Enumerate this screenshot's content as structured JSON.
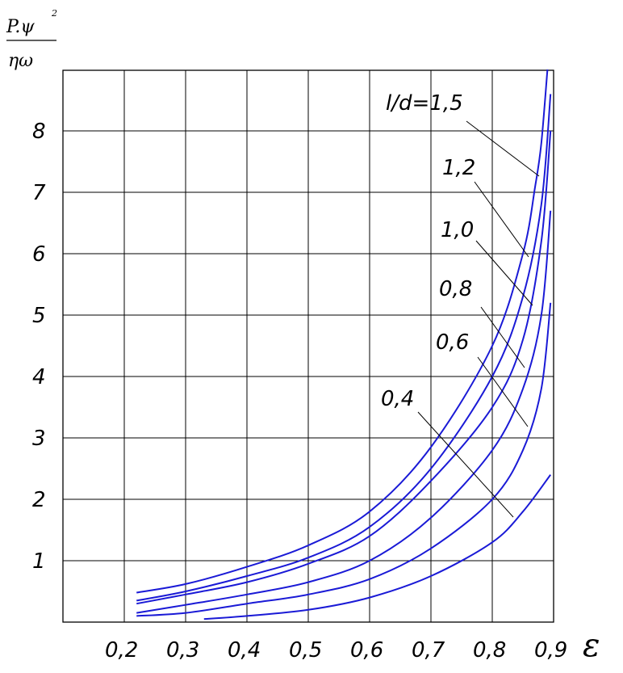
{
  "chart_data": {
    "type": "line",
    "ylabel_numerator": "P.ψ",
    "ylabel_exponent": "2",
    "ylabel_denominator": "ηω",
    "xlabel": "ε",
    "xlim": [
      0.1,
      0.9
    ],
    "ylim": [
      0,
      9
    ],
    "grid": true,
    "xticks": [
      0.2,
      0.3,
      0.4,
      0.5,
      0.6,
      0.7,
      0.8,
      0.9
    ],
    "xtick_labels": [
      "0,2",
      "0,3",
      "0,4",
      "0,5",
      "0,6",
      "0,7",
      "0,8",
      "0,9"
    ],
    "yticks": [
      1,
      2,
      3,
      4,
      5,
      6,
      7,
      8
    ],
    "ytick_labels": [
      "1",
      "2",
      "3",
      "4",
      "5",
      "6",
      "7",
      "8"
    ],
    "line_color": "#1a1ad6",
    "series": [
      {
        "name": "l/d=1,5",
        "x": [
          0.22,
          0.3,
          0.4,
          0.5,
          0.6,
          0.7,
          0.8,
          0.85,
          0.87,
          0.88,
          0.89
        ],
        "y": [
          0.48,
          0.62,
          0.9,
          1.25,
          1.8,
          2.85,
          4.5,
          6.0,
          7.1,
          7.8,
          9.0
        ]
      },
      {
        "name": "1,2",
        "x": [
          0.22,
          0.3,
          0.4,
          0.5,
          0.6,
          0.7,
          0.8,
          0.85,
          0.88,
          0.895
        ],
        "y": [
          0.35,
          0.5,
          0.75,
          1.05,
          1.55,
          2.5,
          4.0,
          5.3,
          6.8,
          8.6
        ]
      },
      {
        "name": "1,0",
        "x": [
          0.22,
          0.3,
          0.4,
          0.5,
          0.6,
          0.7,
          0.8,
          0.85,
          0.88,
          0.895
        ],
        "y": [
          0.3,
          0.45,
          0.65,
          0.95,
          1.4,
          2.3,
          3.5,
          4.6,
          6.2,
          8.0
        ]
      },
      {
        "name": "0,8",
        "x": [
          0.22,
          0.3,
          0.4,
          0.5,
          0.6,
          0.7,
          0.8,
          0.85,
          0.88,
          0.895
        ],
        "y": [
          0.15,
          0.28,
          0.45,
          0.65,
          1.0,
          1.7,
          2.8,
          3.8,
          5.0,
          6.7
        ]
      },
      {
        "name": "0,6",
        "x": [
          0.22,
          0.3,
          0.4,
          0.5,
          0.6,
          0.7,
          0.8,
          0.85,
          0.88,
          0.895
        ],
        "y": [
          0.1,
          0.15,
          0.3,
          0.45,
          0.7,
          1.2,
          2.0,
          2.8,
          3.8,
          5.2
        ]
      },
      {
        "name": "0,4",
        "x": [
          0.33,
          0.4,
          0.5,
          0.6,
          0.7,
          0.8,
          0.85,
          0.895
        ],
        "y": [
          0.05,
          0.1,
          0.2,
          0.4,
          0.75,
          1.3,
          1.8,
          2.4
        ]
      }
    ],
    "annotations": [
      {
        "text": "l/d=1,5",
        "series": 0
      },
      {
        "text": "1,2",
        "series": 1
      },
      {
        "text": "1,0",
        "series": 2
      },
      {
        "text": "0,8",
        "series": 3
      },
      {
        "text": "0,6",
        "series": 4
      },
      {
        "text": "0,4",
        "series": 5
      }
    ]
  }
}
